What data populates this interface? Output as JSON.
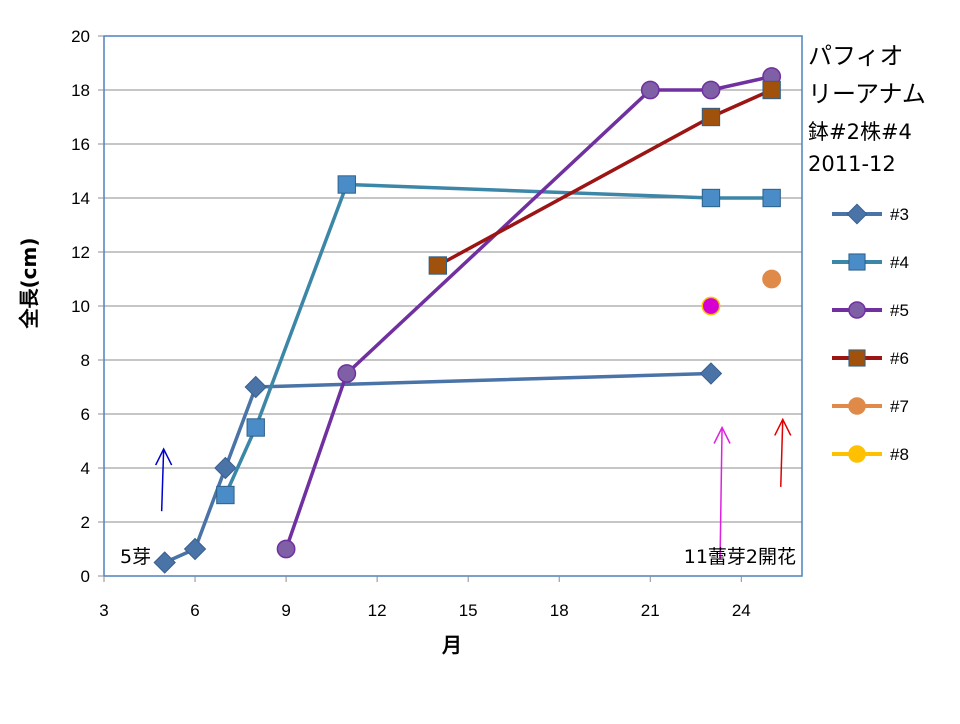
{
  "chart_data": {
    "type": "line",
    "title_lines": [
      "パフィオ",
      "リーアナム",
      "鉢#2株#4",
      "2011-12"
    ],
    "xlabel": "月",
    "ylabel": "全長(cm)",
    "xlim": [
      3,
      26
    ],
    "ylim": [
      0,
      20
    ],
    "x_ticks": [
      3,
      6,
      9,
      12,
      15,
      18,
      21,
      24
    ],
    "y_ticks": [
      0,
      2,
      4,
      6,
      8,
      10,
      12,
      14,
      16,
      18,
      20
    ],
    "series": [
      {
        "name": "#3",
        "color": "#4a73a8",
        "marker": "diamond",
        "points": [
          [
            5,
            0.5
          ],
          [
            6,
            1.0
          ],
          [
            7,
            4.0
          ],
          [
            8,
            7.0
          ],
          [
            23,
            7.5
          ]
        ]
      },
      {
        "name": "#4",
        "color": "#3c86a8",
        "marker": "square",
        "fill": "#4a8cc8",
        "points": [
          [
            7,
            3.0
          ],
          [
            8,
            5.5
          ],
          [
            11,
            14.5
          ],
          [
            23,
            14.0
          ],
          [
            25,
            14.0
          ]
        ]
      },
      {
        "name": "#5",
        "color": "#7030a0",
        "marker": "circle",
        "fill": "#7f5fa6",
        "points": [
          [
            9,
            1.0
          ],
          [
            11,
            7.5
          ],
          [
            21,
            18.0
          ],
          [
            23,
            18.0
          ],
          [
            25,
            18.5
          ]
        ]
      },
      {
        "name": "#6",
        "color": "#9c1414",
        "marker": "square",
        "fill": "#a0520c",
        "points": [
          [
            14,
            11.5
          ],
          [
            23,
            17.0
          ],
          [
            25,
            18.0
          ]
        ]
      },
      {
        "name": "#7",
        "color": "#e08a4a",
        "marker": "circle",
        "fill": "#e08a4a",
        "points": [
          [
            25,
            11.0
          ]
        ]
      },
      {
        "name": "#8",
        "color": "#ffc000",
        "marker": "circle",
        "fill": "#d400d4",
        "points": [
          [
            23,
            10.0
          ]
        ]
      }
    ],
    "annotations": [
      {
        "text": "5芽"
      },
      {
        "text": "11蕾芽2開花"
      }
    ],
    "arrows": [
      {
        "color": "#0000cc",
        "x": 4.9,
        "y_from": 2.4,
        "y_to": 4.7
      },
      {
        "color": "#e020e0",
        "x": 23.3,
        "y_from": 0.6,
        "y_to": 5.5
      },
      {
        "color": "#e00000",
        "x": 25.3,
        "y_from": 3.3,
        "y_to": 5.8
      }
    ],
    "grid": true,
    "legend_position": "right"
  }
}
